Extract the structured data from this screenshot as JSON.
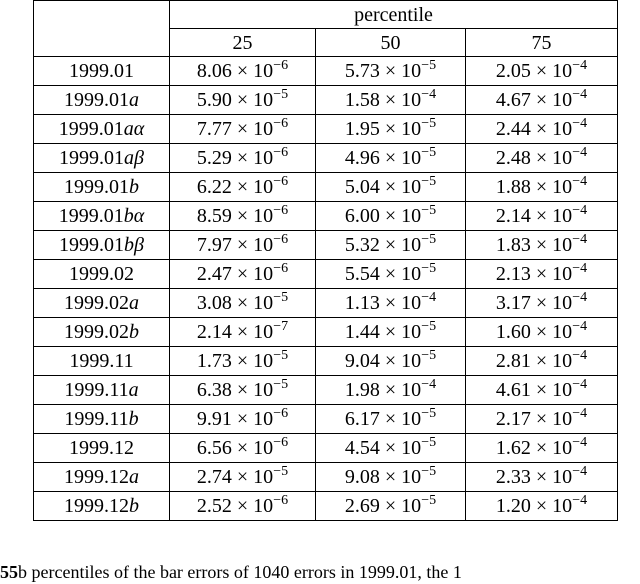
{
  "table": {
    "group_header": "percentile",
    "columns": [
      "25",
      "50",
      "75"
    ],
    "rows": [
      {
        "label": "1999.01",
        "v": [
          [
            "8.06",
            "−6"
          ],
          [
            "5.73",
            "−5"
          ],
          [
            "2.05",
            "−4"
          ]
        ]
      },
      {
        "label": "1999.01a",
        "v": [
          [
            "5.90",
            "−5"
          ],
          [
            "1.58",
            "−4"
          ],
          [
            "4.67",
            "−4"
          ]
        ]
      },
      {
        "label": "1999.01aα",
        "v": [
          [
            "7.77",
            "−6"
          ],
          [
            "1.95",
            "−5"
          ],
          [
            "2.44",
            "−4"
          ]
        ]
      },
      {
        "label": "1999.01aβ",
        "v": [
          [
            "5.29",
            "−6"
          ],
          [
            "4.96",
            "−5"
          ],
          [
            "2.48",
            "−4"
          ]
        ]
      },
      {
        "label": "1999.01b",
        "v": [
          [
            "6.22",
            "−6"
          ],
          [
            "5.04",
            "−5"
          ],
          [
            "1.88",
            "−4"
          ]
        ]
      },
      {
        "label": "1999.01bα",
        "v": [
          [
            "8.59",
            "−6"
          ],
          [
            "6.00",
            "−5"
          ],
          [
            "2.14",
            "−4"
          ]
        ]
      },
      {
        "label": "1999.01bβ",
        "v": [
          [
            "7.97",
            "−6"
          ],
          [
            "5.32",
            "−5"
          ],
          [
            "1.83",
            "−4"
          ]
        ]
      },
      {
        "label": "1999.02",
        "v": [
          [
            "2.47",
            "−6"
          ],
          [
            "5.54",
            "−5"
          ],
          [
            "2.13",
            "−4"
          ]
        ]
      },
      {
        "label": "1999.02a",
        "v": [
          [
            "3.08",
            "−5"
          ],
          [
            "1.13",
            "−4"
          ],
          [
            "3.17",
            "−4"
          ]
        ]
      },
      {
        "label": "1999.02b",
        "v": [
          [
            "2.14",
            "−7"
          ],
          [
            "1.44",
            "−5"
          ],
          [
            "1.60",
            "−4"
          ]
        ]
      },
      {
        "label": "1999.11",
        "v": [
          [
            "1.73",
            "−5"
          ],
          [
            "9.04",
            "−5"
          ],
          [
            "2.81",
            "−4"
          ]
        ]
      },
      {
        "label": "1999.11a",
        "v": [
          [
            "6.38",
            "−5"
          ],
          [
            "1.98",
            "−4"
          ],
          [
            "4.61",
            "−4"
          ]
        ]
      },
      {
        "label": "1999.11b",
        "v": [
          [
            "9.91",
            "−6"
          ],
          [
            "6.17",
            "−5"
          ],
          [
            "2.17",
            "−4"
          ]
        ]
      },
      {
        "label": "1999.12",
        "v": [
          [
            "6.56",
            "−6"
          ],
          [
            "4.54",
            "−5"
          ],
          [
            "1.62",
            "−4"
          ]
        ]
      },
      {
        "label": "1999.12a",
        "v": [
          [
            "2.74",
            "−5"
          ],
          [
            "9.08",
            "−5"
          ],
          [
            "2.33",
            "−4"
          ]
        ]
      },
      {
        "label": "1999.12b",
        "v": [
          [
            "2.52",
            "−6"
          ],
          [
            "2.69",
            "−5"
          ],
          [
            "1.20",
            "−4"
          ]
        ]
      }
    ]
  },
  "caption": {
    "bold": "55",
    "text": "b percentiles of the bar errors of 1040 errors in 1999.01, the 1"
  }
}
